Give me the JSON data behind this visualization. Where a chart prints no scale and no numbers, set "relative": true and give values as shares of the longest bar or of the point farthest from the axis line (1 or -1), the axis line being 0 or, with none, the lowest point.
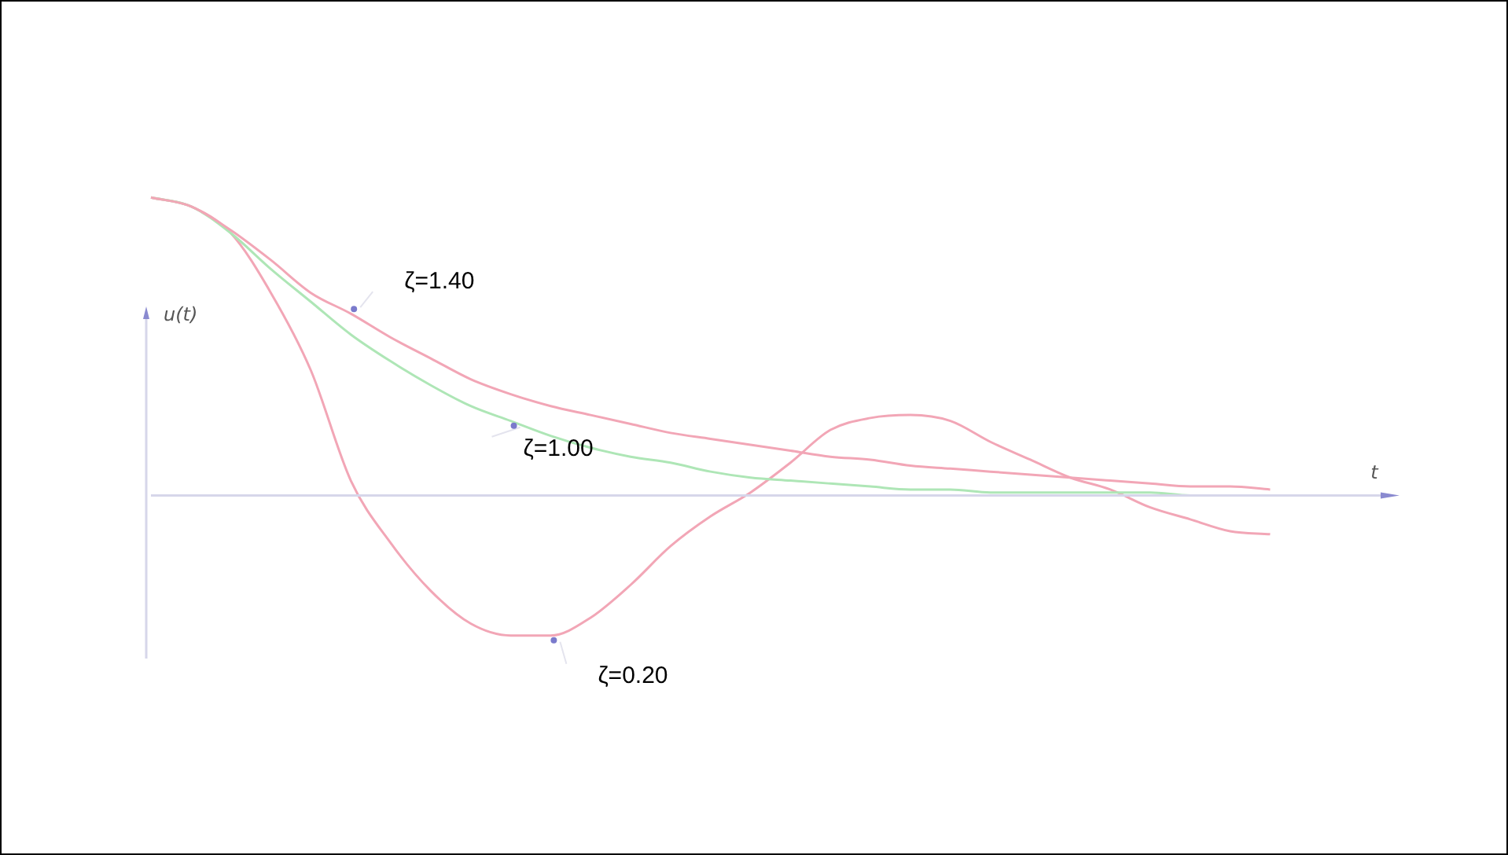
{
  "chart_data": {
    "type": "line",
    "xlabel": "t",
    "ylabel": "u(t)",
    "relative": true,
    "legend": false,
    "marker": "none",
    "grid": false,
    "categories": [
      null,
      null,
      null,
      null,
      null,
      null,
      null,
      null,
      null,
      null,
      null,
      null,
      null,
      null,
      null,
      null,
      null,
      null,
      null,
      null,
      null,
      null,
      null,
      null,
      null,
      null,
      null,
      null,
      null,
      null,
      null,
      null
    ],
    "series": [
      {
        "name": "ζ=1.40",
        "color": "#f2a6b6",
        "values": [
          1,
          0.97,
          0.89,
          0.79,
          0.68,
          0.61,
          0.53,
          0.46,
          0.39,
          0.34,
          0.3,
          0.27,
          0.24,
          0.21,
          0.19,
          0.17,
          0.15,
          0.13,
          0.12,
          0.1,
          0.09,
          0.08,
          0.07,
          0.06,
          0.05,
          0.04,
          0.03,
          0.03,
          0.02,
          null,
          null,
          null
        ]
      },
      {
        "name": "ζ=1.00",
        "color": "#aee6b6",
        "values": [
          1,
          0.97,
          0.88,
          0.76,
          0.65,
          0.54,
          0.45,
          0.37,
          0.3,
          0.25,
          0.2,
          0.16,
          0.13,
          0.11,
          0.08,
          0.06,
          0.05,
          0.04,
          0.03,
          0.02,
          0.02,
          0.01,
          0.01,
          0.01,
          0.01,
          0.01,
          0,
          0,
          0,
          null,
          null,
          null
        ]
      },
      {
        "name": "ζ=0.20",
        "color": "#f2a6b6",
        "values": [
          1,
          0.97,
          0.88,
          0.68,
          0.42,
          0.05,
          -0.16,
          -0.32,
          -0.43,
          -0.47,
          -0.47,
          -0.41,
          -0.3,
          -0.17,
          -0.07,
          0.01,
          0.11,
          0.22,
          0.26,
          0.27,
          0.25,
          0.18,
          0.12,
          0.06,
          0.02,
          -0.04,
          -0.08,
          -0.12,
          -0.13,
          null,
          null,
          null
        ]
      }
    ]
  }
}
